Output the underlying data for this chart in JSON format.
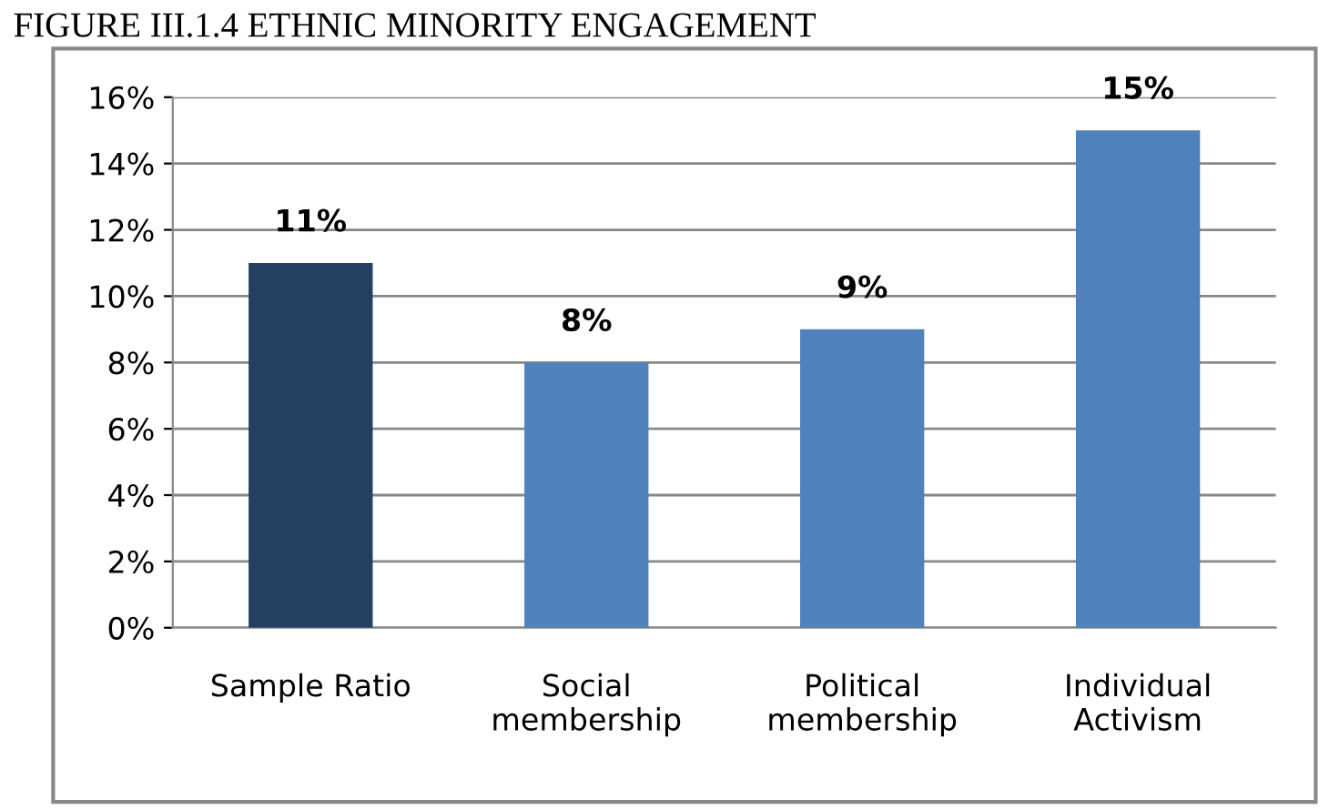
{
  "chart_data": {
    "type": "bar",
    "title": "FIGURE III.1.4 ETHNIC MINORITY ENGAGEMENT",
    "categories": [
      "Sample Ratio",
      "Social\nmembership",
      "Political\nmembership",
      "Individual\nActivism"
    ],
    "values": [
      11,
      8,
      9,
      15
    ],
    "colors": [
      "#243f60",
      "#4f81bd",
      "#4f81bd",
      "#4f81bd"
    ],
    "value_labels": [
      "11%",
      "8%",
      "9%",
      "15%"
    ],
    "ylim": [
      0,
      16
    ],
    "yticks": [
      {
        "value": 0,
        "label": "0%"
      },
      {
        "value": 2,
        "label": "2%"
      },
      {
        "value": 4,
        "label": "4%"
      },
      {
        "value": 6,
        "label": "6%"
      },
      {
        "value": 8,
        "label": "8%"
      },
      {
        "value": 10,
        "label": "10%"
      },
      {
        "value": 12,
        "label": "12%"
      },
      {
        "value": 14,
        "label": "14%"
      },
      {
        "value": 16,
        "label": "16%"
      }
    ],
    "grid": "y"
  }
}
